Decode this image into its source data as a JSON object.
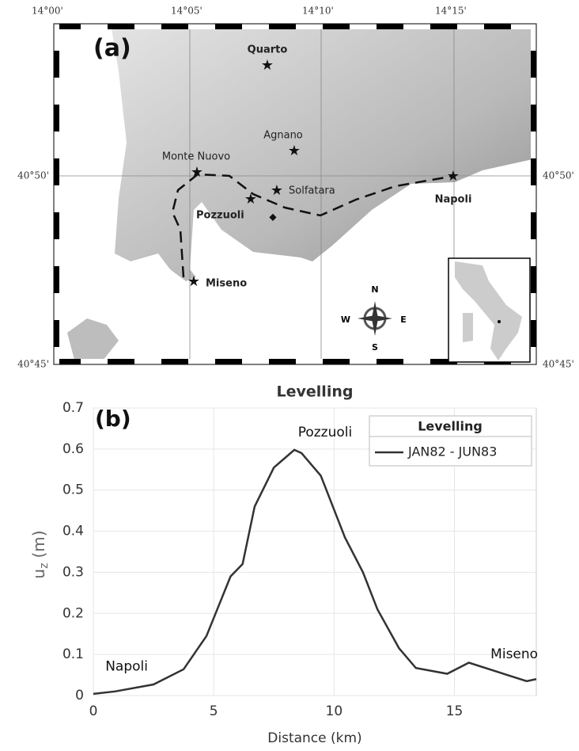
{
  "map": {
    "panel": "(a)",
    "lon_labels": [
      "14°00'",
      "14°05'",
      "14°10'",
      "14°15'"
    ],
    "lat_labels": [
      "40°50'",
      "40°45'"
    ],
    "places": [
      "Quarto",
      "Agnano",
      "Monte Nuovo",
      "Solfatara",
      "Pozzuoli",
      "Napoli",
      "Miseno"
    ],
    "compass": {
      "n": "N",
      "e": "E",
      "s": "S",
      "w": "W"
    }
  },
  "chart_data": {
    "type": "line",
    "panel": "(b)",
    "title": "Levelling",
    "xlabel": "Distance (km)",
    "ylabel": "u",
    "ylabel_sub": "z",
    "ylabel_unit": "(m)",
    "x": [
      0,
      0.9,
      2.5,
      3.75,
      4.7,
      5.7,
      6.2,
      6.7,
      7.5,
      8.35,
      8.65,
      9.45,
      10.45,
      11.2,
      11.8,
      12.7,
      13.4,
      14.7,
      15.6,
      18.0,
      18.4
    ],
    "series": [
      {
        "name": "JAN82 - JUN83",
        "color": "#333333",
        "values": [
          0.004,
          0.01,
          0.027,
          0.064,
          0.145,
          0.29,
          0.32,
          0.46,
          0.555,
          0.598,
          0.59,
          0.535,
          0.385,
          0.3,
          0.21,
          0.115,
          0.067,
          0.053,
          0.08,
          0.035,
          0.04
        ]
      }
    ],
    "legend_title": "Levelling",
    "legend": "upper right",
    "annotations": [
      {
        "text": "Napoli",
        "x": 0.5,
        "y": 0.07
      },
      {
        "text": "Pozzuoli",
        "x": 8.5,
        "y": 0.64
      },
      {
        "text": "Miseno",
        "x": 16.5,
        "y": 0.1
      }
    ],
    "xlim": [
      0,
      18.4
    ],
    "ylim": [
      0,
      0.7
    ],
    "xticks": [
      0,
      5,
      10,
      15
    ],
    "yticks": [
      0,
      0.1,
      0.2,
      0.3,
      0.4,
      0.5,
      0.6,
      0.7
    ],
    "grid": true
  }
}
